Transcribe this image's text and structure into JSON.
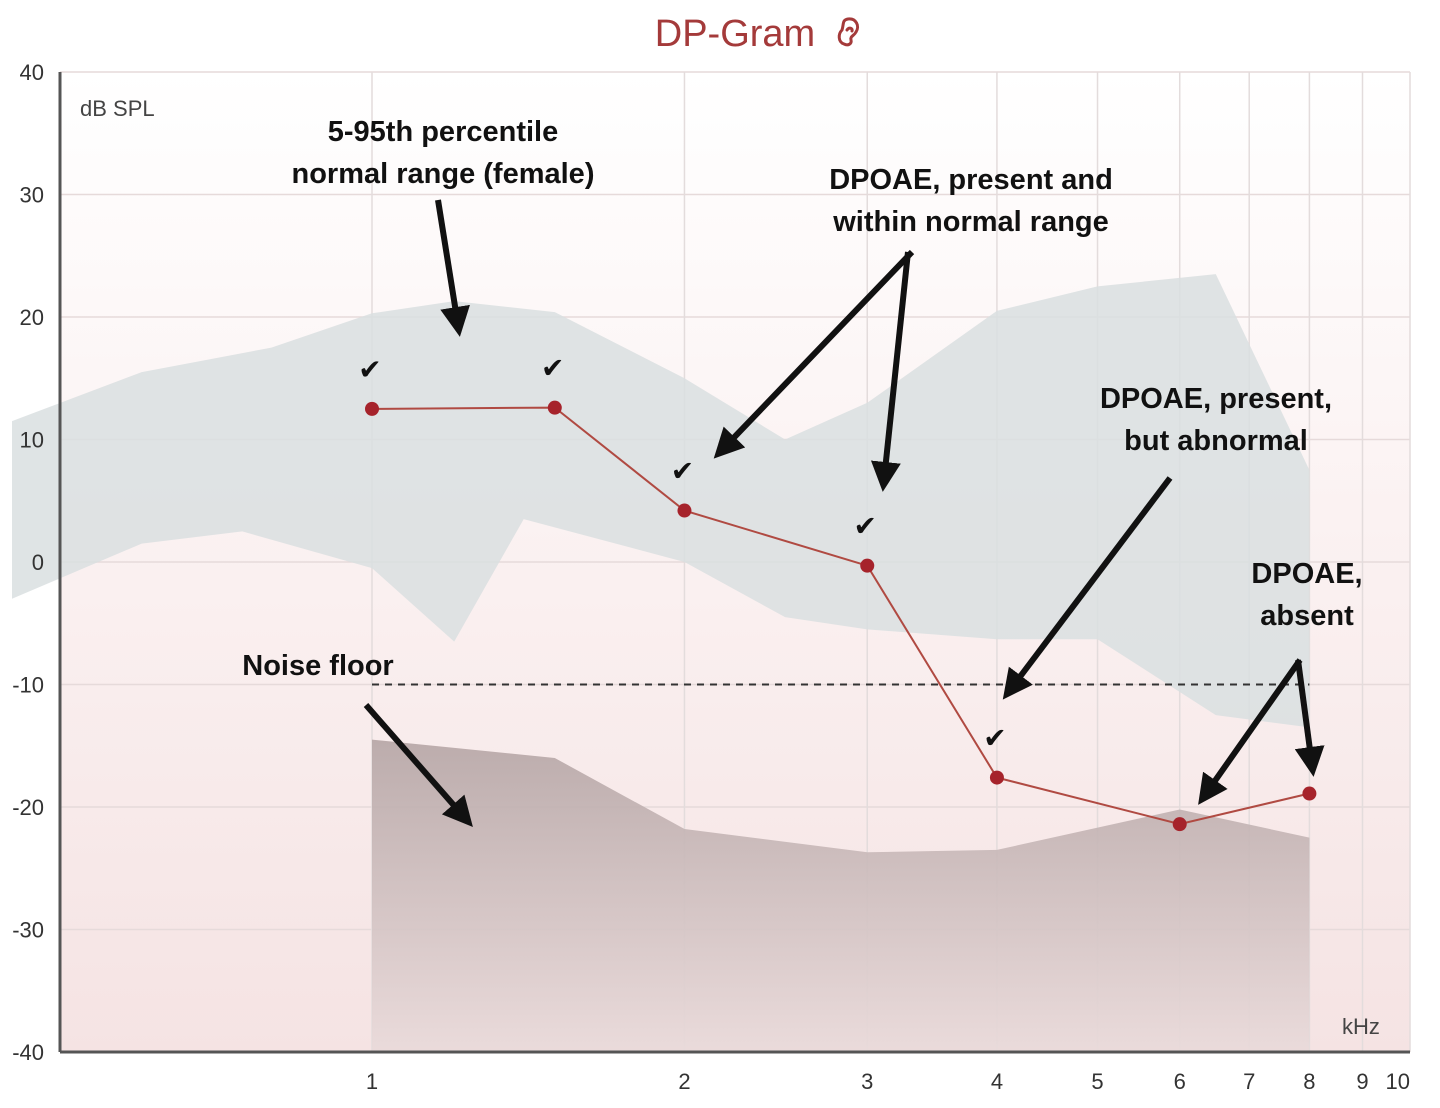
{
  "chart_data": {
    "type": "line",
    "title": "DP-Gram",
    "ear_icon_color": "#a43a3a",
    "ylabel": "dB SPL",
    "xlabel": "kHz",
    "x_scale": "log",
    "xlim": [
      0.45,
      10
    ],
    "ylim": [
      -40,
      40
    ],
    "grid": true,
    "x_ticks": [
      "1",
      "2",
      "3",
      "4",
      "5",
      "6",
      "7",
      "8",
      "9",
      "10"
    ],
    "y_ticks": [
      "40",
      "30",
      "20",
      "10",
      "0",
      "-10",
      "-20",
      "-30",
      "-40"
    ],
    "colors": {
      "dpoae_line": "#b04a42",
      "dpoae_point": "#a6232b",
      "normal_range_fill": "#d9dfe0",
      "noise_floor_fill": "#b9a9a9",
      "background_bottom": "#f6e6e6"
    },
    "series": [
      {
        "kind": "dpoae",
        "points": [
          {
            "x": 1.0,
            "y": 12.5
          },
          {
            "x": 1.5,
            "y": 12.6
          },
          {
            "x": 2.0,
            "y": 4.2
          },
          {
            "x": 3.0,
            "y": -0.3
          },
          {
            "x": 4.0,
            "y": -17.6
          },
          {
            "x": 6.0,
            "y": -21.4
          },
          {
            "x": 8.0,
            "y": -18.9
          }
        ],
        "checkmarks_at_x": [
          1.0,
          1.5,
          2.0,
          3.0,
          4.0
        ]
      },
      {
        "kind": "normal_range",
        "upper": [
          {
            "x": 0.45,
            "y": 11.5
          },
          {
            "x": 0.6,
            "y": 15.5
          },
          {
            "x": 0.8,
            "y": 17.5
          },
          {
            "x": 1.0,
            "y": 20.3
          },
          {
            "x": 1.2,
            "y": 21.3
          },
          {
            "x": 1.5,
            "y": 20.4
          },
          {
            "x": 2.0,
            "y": 15.0
          },
          {
            "x": 2.5,
            "y": 10.0
          },
          {
            "x": 3.0,
            "y": 13.0
          },
          {
            "x": 4.0,
            "y": 20.5
          },
          {
            "x": 5.0,
            "y": 22.5
          },
          {
            "x": 6.5,
            "y": 23.5
          },
          {
            "x": 8.0,
            "y": 7.5
          }
        ],
        "lower": [
          {
            "x": 0.45,
            "y": -3.0
          },
          {
            "x": 0.6,
            "y": 1.5
          },
          {
            "x": 0.75,
            "y": 2.5
          },
          {
            "x": 1.0,
            "y": -0.5
          },
          {
            "x": 1.2,
            "y": -6.5
          },
          {
            "x": 1.4,
            "y": 3.5
          },
          {
            "x": 2.0,
            "y": 0.0
          },
          {
            "x": 2.5,
            "y": -4.5
          },
          {
            "x": 3.0,
            "y": -5.5
          },
          {
            "x": 4.0,
            "y": -6.3
          },
          {
            "x": 5.0,
            "y": -6.3
          },
          {
            "x": 6.5,
            "y": -12.5
          },
          {
            "x": 8.0,
            "y": -13.5
          }
        ]
      },
      {
        "kind": "noise_floor",
        "points": [
          {
            "x": 1.0,
            "y": -14.5
          },
          {
            "x": 1.5,
            "y": -16.0
          },
          {
            "x": 2.0,
            "y": -21.8
          },
          {
            "x": 3.0,
            "y": -23.7
          },
          {
            "x": 4.0,
            "y": -23.5
          },
          {
            "x": 6.0,
            "y": -20.2
          },
          {
            "x": 8.0,
            "y": -22.5
          }
        ],
        "threshold_y": -10,
        "threshold_x": [
          1.0,
          8.0
        ]
      }
    ],
    "annotations": [
      {
        "id": "range",
        "lines": [
          "5-95th percentile",
          "normal  range (female)"
        ]
      },
      {
        "id": "present",
        "lines": [
          "DPOAE, present and",
          "within normal range"
        ]
      },
      {
        "id": "abnormal",
        "lines": [
          "DPOAE, present,",
          "but abnormal"
        ]
      },
      {
        "id": "absent",
        "lines": [
          "DPOAE,",
          "absent"
        ]
      },
      {
        "id": "noise",
        "lines": [
          "Noise floor"
        ]
      }
    ]
  }
}
